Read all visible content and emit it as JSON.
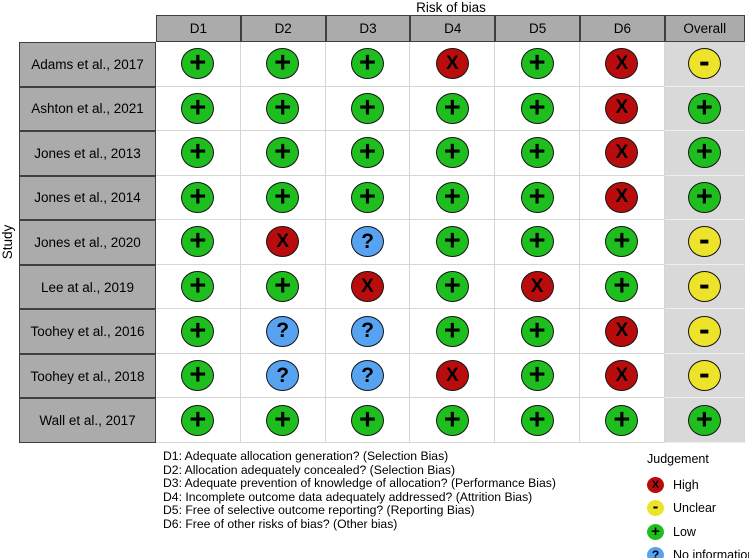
{
  "chart_data": {
    "type": "heatmap",
    "title": "Risk of bias",
    "ylabel": "Study",
    "columns": [
      "D1",
      "D2",
      "D3",
      "D4",
      "D5",
      "D6",
      "Overall"
    ],
    "studies": [
      "Adams et al., 2017",
      "Ashton et al., 2021",
      "Jones et al., 2013",
      "Jones et al., 2014",
      "Jones et al., 2020",
      "Lee at al., 2019",
      "Toohey et al., 2016",
      "Toohey et al., 2018",
      "Wall et al., 2017"
    ],
    "judgements": [
      [
        "low",
        "low",
        "low",
        "high",
        "low",
        "high",
        "unclear"
      ],
      [
        "low",
        "low",
        "low",
        "low",
        "low",
        "high",
        "low"
      ],
      [
        "low",
        "low",
        "low",
        "low",
        "low",
        "high",
        "low"
      ],
      [
        "low",
        "low",
        "low",
        "low",
        "low",
        "high",
        "low"
      ],
      [
        "low",
        "high",
        "no_information",
        "low",
        "low",
        "low",
        "unclear"
      ],
      [
        "low",
        "low",
        "high",
        "low",
        "high",
        "low",
        "unclear"
      ],
      [
        "low",
        "no_information",
        "no_information",
        "low",
        "low",
        "high",
        "unclear"
      ],
      [
        "low",
        "no_information",
        "no_information",
        "high",
        "low",
        "high",
        "unclear"
      ],
      [
        "low",
        "low",
        "low",
        "low",
        "low",
        "low",
        "low"
      ]
    ],
    "symbol_map": {
      "low": "+",
      "high": "X",
      "unclear": "-",
      "no_information": "?"
    },
    "legend_position": "bottom-right",
    "grid": true
  },
  "footnotes": [
    "D1: Adequate allocation generation? (Selection Bias)",
    "D2: Allocation adequately concealed? (Selection Bias)",
    "D3: Adequate prevention of knowledge of allocation? (Performance Bias)",
    "D4: Incomplete outcome data adequately addressed? (Attrition Bias)",
    "D5: Free of selective outcome reporting? (Reporting Bias)",
    "D6: Free of other risks of bias? (Other bias)"
  ],
  "legend": {
    "title": "Judgement",
    "items": [
      {
        "code": "high",
        "label": "High"
      },
      {
        "code": "unclear",
        "label": "Unclear"
      },
      {
        "code": "low",
        "label": "Low"
      },
      {
        "code": "no_information",
        "label": "No information"
      }
    ]
  },
  "colors": {
    "low": "#1FBE1F",
    "high": "#B90C0C",
    "unclear": "#EDE32B",
    "no_information": "#57A2F1",
    "header_fill": "#ABABAB",
    "label_fill": "#ABABAB",
    "overall_fill": "#D9D9D9",
    "grid_line": "#D6D6D6",
    "dark_line": "#3F3F3F"
  }
}
